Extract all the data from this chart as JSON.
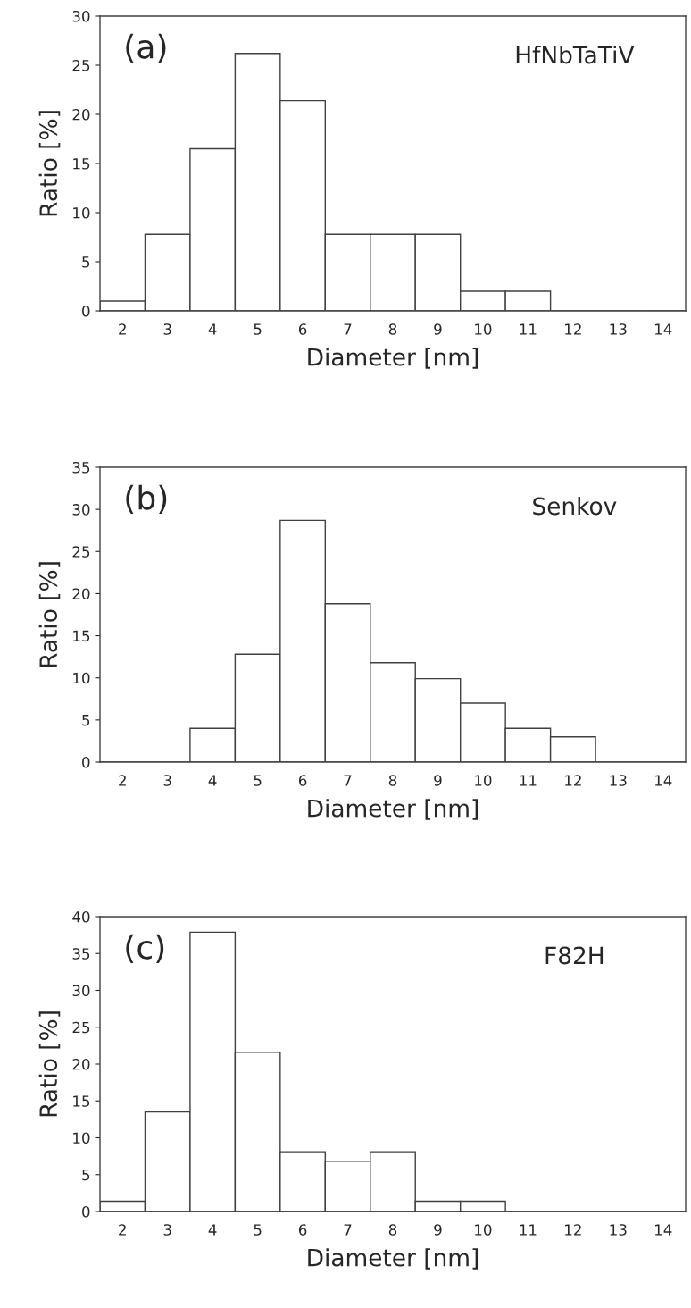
{
  "chart_data": [
    {
      "type": "bar",
      "categories": [
        "2",
        "3",
        "4",
        "5",
        "6",
        "7",
        "8",
        "9",
        "10",
        "11",
        "12",
        "13",
        "14"
      ],
      "values": [
        1.0,
        7.8,
        16.5,
        26.2,
        21.4,
        7.8,
        7.8,
        7.8,
        2.0,
        2.0,
        0,
        0,
        0
      ],
      "color": "#ffffff",
      "ylim": [
        0,
        30
      ],
      "yticks": [
        0,
        5,
        10,
        15,
        20,
        25,
        30
      ],
      "xlabel": "Diameter [nm]",
      "ylabel": "Ratio [%]",
      "annotations": [
        "(a)",
        "HfNbTaTiV"
      ],
      "grid": false
    },
    {
      "type": "bar",
      "categories": [
        "2",
        "3",
        "4",
        "5",
        "6",
        "7",
        "8",
        "9",
        "10",
        "11",
        "12",
        "13",
        "14"
      ],
      "values": [
        0,
        0,
        4.0,
        12.8,
        28.7,
        18.8,
        11.8,
        9.9,
        7.0,
        4.0,
        3.0,
        0,
        0
      ],
      "color": "#ffffff",
      "ylim": [
        0,
        35
      ],
      "yticks": [
        0,
        5,
        10,
        15,
        20,
        25,
        30,
        35
      ],
      "xlabel": "Diameter [nm]",
      "ylabel": "Ratio [%]",
      "annotations": [
        "(b)",
        "Senkov"
      ],
      "grid": false
    },
    {
      "type": "bar",
      "categories": [
        "2",
        "3",
        "4",
        "5",
        "6",
        "7",
        "8",
        "9",
        "10",
        "11",
        "12",
        "13",
        "14"
      ],
      "values": [
        1.4,
        13.5,
        37.9,
        21.6,
        8.1,
        6.8,
        8.1,
        1.4,
        1.4,
        0,
        0,
        0,
        0
      ],
      "color": "#ffffff",
      "ylim": [
        0,
        40
      ],
      "yticks": [
        0,
        5,
        10,
        15,
        20,
        25,
        30,
        35,
        40
      ],
      "xlabel": "Diameter [nm]",
      "ylabel": "Ratio [%]",
      "annotations": [
        "(c)",
        "F82H"
      ],
      "grid": false
    }
  ]
}
